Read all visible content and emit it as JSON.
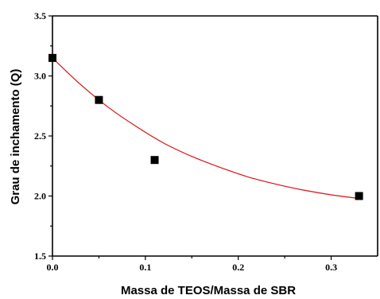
{
  "chart_data": {
    "type": "scatter",
    "xlabel": "Massa de TEOS/Massa de SBR",
    "ylabel": "Grau de inchamento (Q)",
    "xlim": [
      0.0,
      0.35
    ],
    "ylim": [
      1.5,
      3.5
    ],
    "grid": false,
    "x_ticks": [
      {
        "value": 0.0,
        "label": "0.0"
      },
      {
        "value": 0.1,
        "label": "0.1"
      },
      {
        "value": 0.2,
        "label": "0.2"
      },
      {
        "value": 0.3,
        "label": "0.3"
      }
    ],
    "y_ticks": [
      {
        "value": 1.5,
        "label": "1.5"
      },
      {
        "value": 2.0,
        "label": "2.0"
      },
      {
        "value": 2.5,
        "label": "2.5"
      },
      {
        "value": 3.0,
        "label": "3.0"
      },
      {
        "value": 3.5,
        "label": "3.5"
      }
    ],
    "series": [
      {
        "marker": "square",
        "color": "#000000",
        "points": [
          {
            "x": 0.0,
            "y": 3.15
          },
          {
            "x": 0.05,
            "y": 2.8
          },
          {
            "x": 0.11,
            "y": 2.3
          },
          {
            "x": 0.33,
            "y": 2.0
          }
        ]
      }
    ],
    "fit_curve": {
      "type": "exponential decay",
      "color": "#dd1111",
      "x_range": [
        0.0,
        0.33
      ],
      "points": [
        {
          "x": 0.0,
          "y": 3.15
        },
        {
          "x": 0.03,
          "y": 2.93
        },
        {
          "x": 0.06,
          "y": 2.74
        },
        {
          "x": 0.09,
          "y": 2.58
        },
        {
          "x": 0.12,
          "y": 2.44
        },
        {
          "x": 0.15,
          "y": 2.33
        },
        {
          "x": 0.18,
          "y": 2.24
        },
        {
          "x": 0.21,
          "y": 2.16
        },
        {
          "x": 0.24,
          "y": 2.1
        },
        {
          "x": 0.27,
          "y": 2.05
        },
        {
          "x": 0.3,
          "y": 2.01
        },
        {
          "x": 0.33,
          "y": 1.98
        }
      ]
    }
  }
}
